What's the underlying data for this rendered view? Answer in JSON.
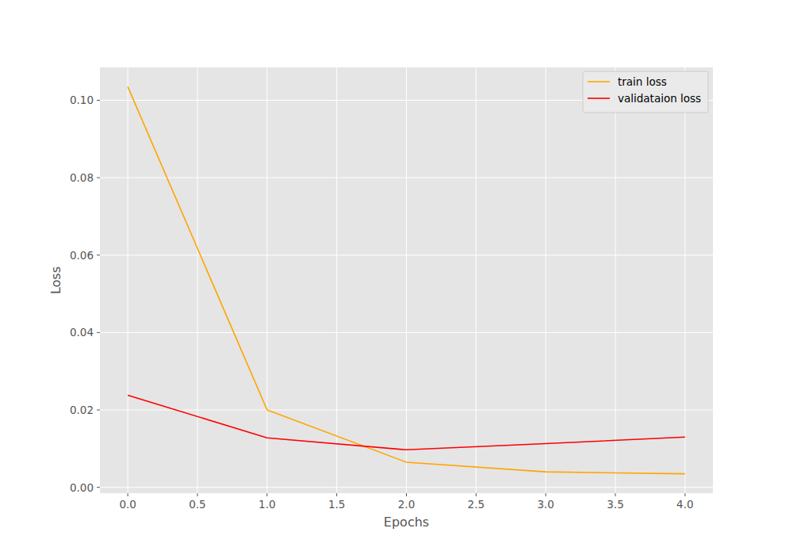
{
  "chart_data": {
    "type": "line",
    "x": [
      0,
      1,
      2,
      3,
      4
    ],
    "series": [
      {
        "name": "train loss",
        "color": "#ffa500",
        "values": [
          0.1035,
          0.02,
          0.0065,
          0.004,
          0.0035
        ]
      },
      {
        "name": "validataion loss",
        "color": "#ff0000",
        "values": [
          0.0238,
          0.0128,
          0.0097,
          0.0113,
          0.013
        ]
      }
    ],
    "x_label": "Epochs",
    "y_label": "Loss",
    "xlim": [
      -0.2,
      4.2
    ],
    "xticks": [
      {
        "value": 0,
        "label": "0.0"
      },
      {
        "value": 0.5,
        "label": "0.5"
      },
      {
        "value": 1,
        "label": "1.0"
      },
      {
        "value": 1.5,
        "label": "1.5"
      },
      {
        "value": 2,
        "label": "2.0"
      },
      {
        "value": 2.5,
        "label": "2.5"
      },
      {
        "value": 3,
        "label": "3.0"
      },
      {
        "value": 3.5,
        "label": "3.5"
      },
      {
        "value": 4,
        "label": "4.0"
      }
    ],
    "ylim": [
      -0.0015,
      0.1085
    ],
    "yticks": [
      {
        "value": 0,
        "label": "0.00"
      },
      {
        "value": 0.02,
        "label": "0.02"
      },
      {
        "value": 0.04,
        "label": "0.04"
      },
      {
        "value": 0.06,
        "label": "0.06"
      },
      {
        "value": 0.08,
        "label": "0.08"
      },
      {
        "value": 0.1,
        "label": "0.10"
      }
    ],
    "grid": true,
    "legend": "upper right"
  }
}
